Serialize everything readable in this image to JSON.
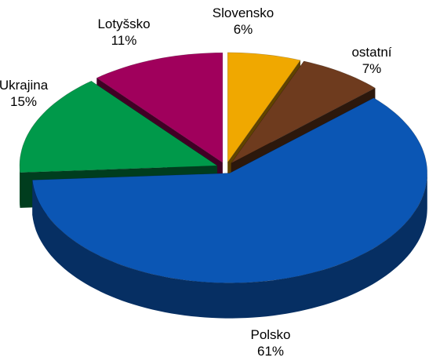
{
  "chart_data": {
    "type": "pie3d",
    "categories": [
      "Slovensko",
      "ostatní",
      "Polsko",
      "Ukrajina",
      "Lotyšsko"
    ],
    "values": [
      6,
      7,
      61,
      15,
      11
    ],
    "value_labels": [
      "6%",
      "7%",
      "61%",
      "15%",
      "11%"
    ],
    "colors": [
      "#f0a800",
      "#6e3b1e",
      "#0b56b4",
      "#00994a",
      "#a0005c"
    ]
  }
}
